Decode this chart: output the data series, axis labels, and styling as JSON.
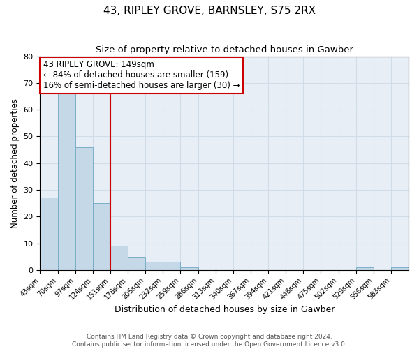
{
  "title": "43, RIPLEY GROVE, BARNSLEY, S75 2RX",
  "subtitle": "Size of property relative to detached houses in Gawber",
  "xlabel": "Distribution of detached houses by size in Gawber",
  "ylabel": "Number of detached properties",
  "bar_edges": [
    43,
    70,
    97,
    124,
    151,
    178,
    205,
    232,
    259,
    286,
    313,
    340,
    367,
    394,
    421,
    448,
    475,
    502,
    529,
    556,
    583
  ],
  "bar_heights": [
    27,
    67,
    46,
    25,
    9,
    5,
    3,
    3,
    1,
    0,
    0,
    0,
    0,
    0,
    0,
    0,
    0,
    0,
    1,
    0,
    1
  ],
  "bar_color": "#c5d8e8",
  "bar_edge_color": "#7aafc8",
  "vertical_line_x": 151,
  "vertical_line_color": "#cc0000",
  "annotation_text": "43 RIPLEY GROVE: 149sqm\n← 84% of detached houses are smaller (159)\n16% of semi-detached houses are larger (30) →",
  "annotation_box_color": "#ffffff",
  "annotation_border_color": "#cc0000",
  "ylim": [
    0,
    80
  ],
  "yticks": [
    0,
    10,
    20,
    30,
    40,
    50,
    60,
    70,
    80
  ],
  "tick_labels": [
    "43sqm",
    "70sqm",
    "97sqm",
    "124sqm",
    "151sqm",
    "178sqm",
    "205sqm",
    "232sqm",
    "259sqm",
    "286sqm",
    "313sqm",
    "340sqm",
    "367sqm",
    "394sqm",
    "421sqm",
    "448sqm",
    "475sqm",
    "502sqm",
    "529sqm",
    "556sqm",
    "583sqm"
  ],
  "grid_color": "#d0dce8",
  "background_color": "#e8eef5",
  "footer_line1": "Contains HM Land Registry data © Crown copyright and database right 2024.",
  "footer_line2": "Contains public sector information licensed under the Open Government Licence v3.0.",
  "title_fontsize": 11,
  "subtitle_fontsize": 9.5,
  "annotation_fontsize": 8.5,
  "xlabel_fontsize": 9,
  "ylabel_fontsize": 8.5,
  "tick_fontsize": 7,
  "footer_fontsize": 6.5
}
